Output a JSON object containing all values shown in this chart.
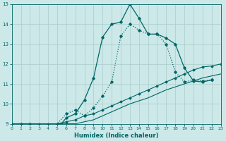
{
  "xlabel": "Humidex (Indice chaleur)",
  "bg_color": "#cce8e8",
  "grid_color": "#aacccc",
  "line_color": "#006666",
  "xlim": [
    0,
    23
  ],
  "ylim": [
    9,
    15
  ],
  "yticks": [
    9,
    10,
    11,
    12,
    13,
    14,
    15
  ],
  "xticks": [
    0,
    1,
    2,
    3,
    4,
    5,
    6,
    7,
    8,
    9,
    10,
    11,
    12,
    13,
    14,
    15,
    16,
    17,
    18,
    19,
    20,
    21,
    22,
    23
  ],
  "line1_x": [
    0,
    1,
    2,
    3,
    4,
    5,
    6,
    7,
    8,
    9,
    10,
    11,
    12,
    13,
    14,
    15,
    16,
    17,
    18,
    19,
    20,
    21,
    22
  ],
  "line1_y": [
    9.0,
    9.0,
    9.0,
    8.85,
    8.75,
    8.75,
    9.3,
    9.5,
    10.2,
    11.3,
    13.35,
    14.0,
    14.1,
    15.0,
    14.3,
    13.5,
    13.5,
    13.3,
    13.0,
    11.8,
    11.15,
    11.1,
    11.2
  ],
  "line1_style": "-",
  "line1_marker": "D",
  "line1_markersize": 1.8,
  "line2_x": [
    0,
    1,
    2,
    3,
    4,
    5,
    6,
    7,
    8,
    9,
    10,
    11,
    12,
    13,
    14,
    15,
    16,
    17,
    18,
    19,
    20,
    21,
    22
  ],
  "line2_y": [
    9.0,
    9.0,
    9.0,
    8.85,
    8.7,
    9.0,
    9.5,
    9.7,
    9.4,
    9.8,
    10.4,
    11.1,
    13.4,
    14.0,
    13.7,
    13.5,
    13.5,
    13.0,
    11.6,
    11.1,
    11.2,
    11.15,
    11.2
  ],
  "line2_style": ":",
  "line2_marker": "D",
  "line2_markersize": 1.8,
  "line3_x": [
    0,
    1,
    2,
    3,
    4,
    5,
    6,
    7,
    8,
    9,
    10,
    11,
    12,
    13,
    14,
    15,
    16,
    17,
    18,
    19,
    20,
    21,
    22,
    23
  ],
  "line3_y": [
    9.0,
    9.0,
    9.0,
    9.0,
    9.0,
    9.0,
    9.1,
    9.2,
    9.4,
    9.5,
    9.7,
    9.9,
    10.1,
    10.3,
    10.5,
    10.7,
    10.9,
    11.1,
    11.3,
    11.5,
    11.7,
    11.85,
    11.9,
    12.0
  ],
  "line3_style": "-",
  "line3_marker": "D",
  "line3_markersize": 1.5,
  "line4_x": [
    0,
    1,
    2,
    3,
    4,
    5,
    6,
    7,
    8,
    9,
    10,
    11,
    12,
    13,
    14,
    15,
    16,
    17,
    18,
    19,
    20,
    21,
    22,
    23
  ],
  "line4_y": [
    9.0,
    9.0,
    9.0,
    9.0,
    9.0,
    9.0,
    9.0,
    9.0,
    9.1,
    9.2,
    9.4,
    9.6,
    9.8,
    10.0,
    10.15,
    10.3,
    10.5,
    10.7,
    10.85,
    11.0,
    11.15,
    11.3,
    11.4,
    11.5
  ],
  "line4_style": "-",
  "line4_marker": null,
  "line4_markersize": 0
}
